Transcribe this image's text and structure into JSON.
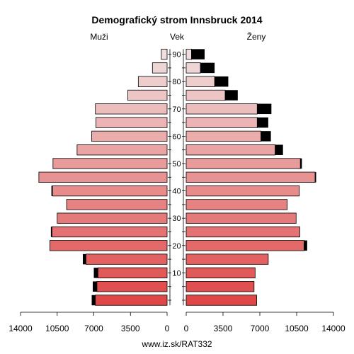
{
  "chart_data": {
    "type": "bar",
    "title": "Demografický strom Innsbruck 2014",
    "left_label": "Muži",
    "center_label": "Vek",
    "right_label": "Ženy",
    "footer": "www.iz.sk/RAT332",
    "age_ticks": [
      "10",
      "20",
      "30",
      "40",
      "50",
      "60",
      "70",
      "80",
      "90"
    ],
    "x_ticks_left": [
      "14000",
      "10500",
      "7000",
      "3500",
      "0"
    ],
    "x_ticks_right": [
      "0",
      "3500",
      "7000",
      "10500",
      "14000"
    ],
    "xlim": [
      0,
      14000
    ],
    "age_groups": [
      "0-4",
      "5-9",
      "10-14",
      "15-19",
      "20-24",
      "25-29",
      "30-34",
      "35-39",
      "40-44",
      "45-49",
      "50-54",
      "55-59",
      "60-64",
      "65-69",
      "70-74",
      "75-79",
      "80-84",
      "85-89",
      "90+"
    ],
    "series": [
      {
        "name": "Muži",
        "values": [
          6850,
          6700,
          6600,
          7750,
          11200,
          11000,
          10500,
          9600,
          10950,
          12250,
          10900,
          8600,
          7200,
          6800,
          6850,
          3750,
          2750,
          1400,
          550
        ],
        "surplus": [
          350,
          400,
          400,
          300,
          0,
          100,
          0,
          0,
          100,
          0,
          0,
          0,
          0,
          0,
          0,
          0,
          0,
          0,
          0
        ]
      },
      {
        "name": "Ženy",
        "values": [
          6700,
          6450,
          6550,
          7800,
          11200,
          10800,
          10450,
          9600,
          10750,
          12250,
          10850,
          8450,
          7100,
          6750,
          6750,
          3700,
          2700,
          1350,
          500
        ],
        "surplus": [
          0,
          0,
          0,
          0,
          300,
          0,
          0,
          0,
          0,
          100,
          150,
          750,
          950,
          1050,
          1350,
          1200,
          1300,
          1350,
          1250
        ]
      }
    ],
    "colors": {
      "young": "#e04848",
      "old": "#f0dede",
      "surplus": "#000000",
      "stroke": "#000000"
    }
  }
}
